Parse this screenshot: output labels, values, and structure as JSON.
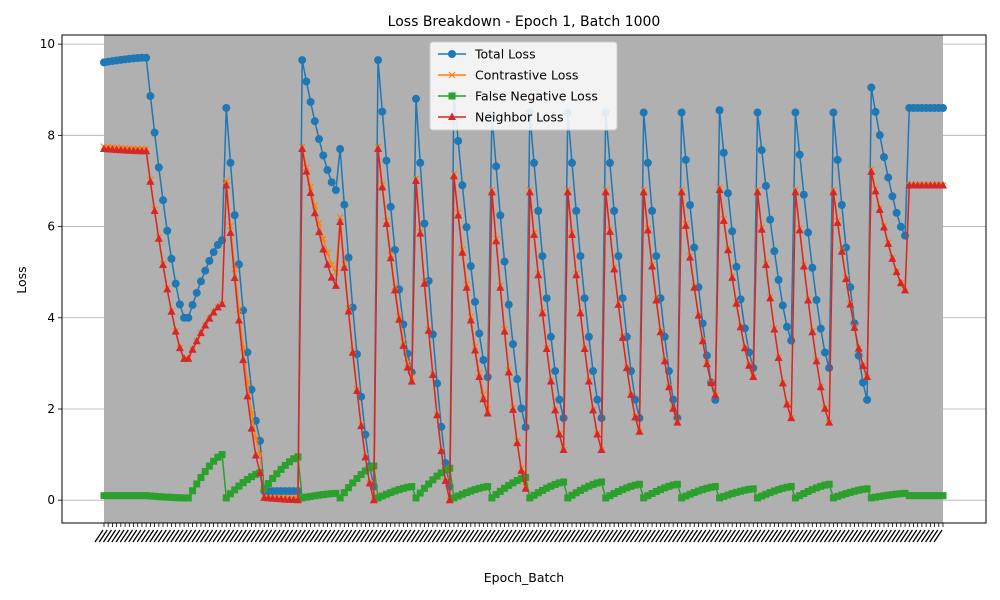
{
  "chart_data": {
    "type": "line",
    "title": "Loss Breakdown - Epoch 1, Batch 1000",
    "xlabel": "Epoch_Batch",
    "ylabel": "Loss",
    "ylim": [
      -0.5,
      10.2
    ],
    "yticks": [
      0,
      2,
      4,
      6,
      8,
      10
    ],
    "x_tick_labels_note": "",
    "plot_background": "#b0b0b0",
    "grid": true,
    "legend_position": "upper center",
    "num_points": 200,
    "series": [
      {
        "name": "Total Loss",
        "color": "#1f77b4",
        "marker": "circle",
        "segments": [
          {
            "start": 9.6,
            "end": 9.7
          },
          {
            "start": 9.7,
            "end": 4.0
          },
          {
            "start": 4.0,
            "end": 5.7
          },
          {
            "start": 8.6,
            "end": 1.3
          },
          {
            "start": 0.2,
            "end": 0.2
          },
          {
            "start": 9.65,
            "end": 6.8
          },
          {
            "start": 7.7,
            "end": 0.3
          },
          {
            "start": 9.65,
            "end": 2.8
          },
          {
            "start": 8.8,
            "end": 0.3
          },
          {
            "start": 8.9,
            "end": 2.7
          },
          {
            "start": 8.45,
            "end": 1.6
          },
          {
            "start": 8.5,
            "end": 1.8
          },
          {
            "start": 8.5,
            "end": 1.8
          },
          {
            "start": 8.5,
            "end": 1.8
          },
          {
            "start": 8.5,
            "end": 1.8
          },
          {
            "start": 8.5,
            "end": 2.2
          },
          {
            "start": 8.55,
            "end": 2.9
          },
          {
            "start": 8.5,
            "end": 3.5
          },
          {
            "start": 8.5,
            "end": 2.9
          },
          {
            "start": 8.5,
            "end": 2.2
          },
          {
            "start": 9.05,
            "end": 5.8
          },
          {
            "start": 8.6,
            "end": 8.6
          }
        ]
      },
      {
        "name": "Contrastive Loss",
        "color": "#ff7f0e",
        "marker": "x",
        "segments": [
          {
            "start": 7.75,
            "end": 7.7
          },
          {
            "start": 7.7,
            "end": 3.1
          },
          {
            "start": 3.1,
            "end": 4.3
          },
          {
            "start": 7.0,
            "end": 1.0
          },
          {
            "start": 0.05,
            "end": 0.05
          },
          {
            "start": 7.75,
            "end": 5.0
          },
          {
            "start": 6.2,
            "end": 0.0
          },
          {
            "start": 7.75,
            "end": 2.7
          },
          {
            "start": 7.05,
            "end": 0.0
          },
          {
            "start": 7.15,
            "end": 2.0
          },
          {
            "start": 6.8,
            "end": 0.3
          },
          {
            "start": 6.8,
            "end": 1.1
          },
          {
            "start": 6.8,
            "end": 1.1
          },
          {
            "start": 6.8,
            "end": 1.5
          },
          {
            "start": 6.8,
            "end": 1.7
          },
          {
            "start": 6.8,
            "end": 2.3
          },
          {
            "start": 6.85,
            "end": 2.7
          },
          {
            "start": 6.8,
            "end": 1.8
          },
          {
            "start": 6.8,
            "end": 1.7
          },
          {
            "start": 6.8,
            "end": 2.7
          },
          {
            "start": 7.25,
            "end": 4.6
          },
          {
            "start": 6.9,
            "end": 6.9
          }
        ]
      },
      {
        "name": "False Negative Loss",
        "color": "#2ca02c",
        "marker": "square",
        "segments": [
          {
            "start": 0.1,
            "end": 0.1
          },
          {
            "start": 0.1,
            "end": 0.05
          },
          {
            "start": 0.05,
            "end": 1.0
          },
          {
            "start": 0.05,
            "end": 0.6
          },
          {
            "start": 0.25,
            "end": 0.95
          },
          {
            "start": 0.05,
            "end": 0.15
          },
          {
            "start": 0.05,
            "end": 0.75
          },
          {
            "start": 0.05,
            "end": 0.3
          },
          {
            "start": 0.05,
            "end": 0.7
          },
          {
            "start": 0.05,
            "end": 0.3
          },
          {
            "start": 0.05,
            "end": 0.5
          },
          {
            "start": 0.05,
            "end": 0.4
          },
          {
            "start": 0.05,
            "end": 0.4
          },
          {
            "start": 0.05,
            "end": 0.35
          },
          {
            "start": 0.05,
            "end": 0.35
          },
          {
            "start": 0.05,
            "end": 0.3
          },
          {
            "start": 0.05,
            "end": 0.25
          },
          {
            "start": 0.05,
            "end": 0.3
          },
          {
            "start": 0.05,
            "end": 0.35
          },
          {
            "start": 0.05,
            "end": 0.25
          },
          {
            "start": 0.05,
            "end": 0.15
          },
          {
            "start": 0.1,
            "end": 0.1
          }
        ]
      },
      {
        "name": "Neighbor Loss",
        "color": "#d62728",
        "marker": "triangle",
        "segments": [
          {
            "start": 7.7,
            "end": 7.65
          },
          {
            "start": 7.65,
            "end": 3.1
          },
          {
            "start": 3.1,
            "end": 4.3
          },
          {
            "start": 6.9,
            "end": 0.6
          },
          {
            "start": 0.05,
            "end": 0.0
          },
          {
            "start": 7.7,
            "end": 4.7
          },
          {
            "start": 6.1,
            "end": 0.0
          },
          {
            "start": 7.7,
            "end": 2.6
          },
          {
            "start": 7.0,
            "end": 0.0
          },
          {
            "start": 7.1,
            "end": 1.9
          },
          {
            "start": 6.75,
            "end": 0.25
          },
          {
            "start": 6.75,
            "end": 1.1
          },
          {
            "start": 6.75,
            "end": 1.1
          },
          {
            "start": 6.75,
            "end": 1.5
          },
          {
            "start": 6.75,
            "end": 1.7
          },
          {
            "start": 6.75,
            "end": 2.3
          },
          {
            "start": 6.8,
            "end": 2.7
          },
          {
            "start": 6.75,
            "end": 1.8
          },
          {
            "start": 6.75,
            "end": 1.7
          },
          {
            "start": 6.75,
            "end": 2.7
          },
          {
            "start": 7.2,
            "end": 4.6
          },
          {
            "start": 6.9,
            "end": 6.9
          }
        ]
      }
    ]
  }
}
